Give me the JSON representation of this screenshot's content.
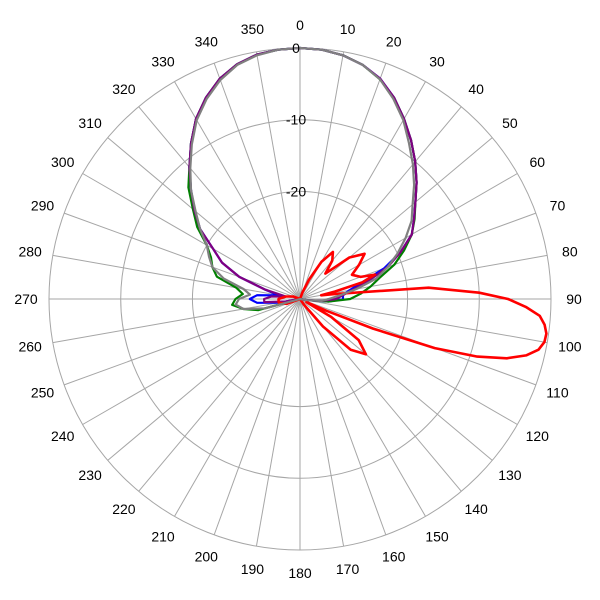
{
  "chart_data": {
    "type": "polar-line",
    "angle_direction": "clockwise",
    "zero_direction": "top",
    "angle_ticks": [
      0,
      10,
      20,
      30,
      40,
      50,
      60,
      70,
      80,
      90,
      100,
      110,
      120,
      130,
      140,
      150,
      160,
      170,
      180,
      190,
      200,
      210,
      220,
      230,
      240,
      250,
      260,
      270,
      280,
      290,
      300,
      310,
      320,
      330,
      340,
      350
    ],
    "radial_ticks": [
      0,
      -10,
      -20
    ],
    "r_range": [
      -35,
      0
    ],
    "grid": true,
    "series": [
      {
        "color": "#0000ff",
        "points": [
          [
            0,
            0
          ],
          [
            5,
            -0.1
          ],
          [
            10,
            -0.5
          ],
          [
            15,
            -1.2
          ],
          [
            20,
            -2.3
          ],
          [
            25,
            -4
          ],
          [
            30,
            -6
          ],
          [
            35,
            -8
          ],
          [
            40,
            -10
          ],
          [
            45,
            -12
          ],
          [
            50,
            -14
          ],
          [
            55,
            -15.6
          ],
          [
            60,
            -17
          ],
          [
            65,
            -19.5
          ],
          [
            70,
            -22.5
          ],
          [
            75,
            -26
          ],
          [
            80,
            -28
          ],
          [
            85,
            -29
          ],
          [
            90,
            -29
          ],
          [
            95,
            -31
          ],
          [
            100,
            -34
          ],
          [
            110,
            -35
          ],
          [
            180,
            -35
          ],
          [
            250,
            -35
          ],
          [
            260,
            -32
          ],
          [
            265,
            -29
          ],
          [
            270,
            -28
          ],
          [
            275,
            -29
          ],
          [
            280,
            -32
          ],
          [
            285,
            -30
          ],
          [
            290,
            -26
          ],
          [
            295,
            -23
          ],
          [
            300,
            -21
          ],
          [
            305,
            -18
          ],
          [
            310,
            -15.8
          ],
          [
            315,
            -13.5
          ],
          [
            320,
            -11
          ],
          [
            325,
            -8.5
          ],
          [
            330,
            -6
          ],
          [
            335,
            -4
          ],
          [
            340,
            -2.3
          ],
          [
            345,
            -1.1
          ],
          [
            350,
            -0.4
          ],
          [
            355,
            -0.1
          ],
          [
            360,
            0
          ]
        ]
      },
      {
        "color": "#008000",
        "points": [
          [
            0,
            0
          ],
          [
            5,
            -0.1
          ],
          [
            10,
            -0.5
          ],
          [
            15,
            -1.2
          ],
          [
            20,
            -2.4
          ],
          [
            25,
            -4
          ],
          [
            30,
            -6
          ],
          [
            35,
            -8
          ],
          [
            40,
            -10
          ],
          [
            45,
            -12
          ],
          [
            50,
            -14
          ],
          [
            55,
            -15.5
          ],
          [
            60,
            -17
          ],
          [
            65,
            -19
          ],
          [
            70,
            -21
          ],
          [
            75,
            -23.5
          ],
          [
            80,
            -25
          ],
          [
            85,
            -26.5
          ],
          [
            90,
            -28
          ],
          [
            95,
            -31
          ],
          [
            100,
            -34
          ],
          [
            110,
            -35
          ],
          [
            180,
            -35
          ],
          [
            250,
            -35
          ],
          [
            255,
            -29
          ],
          [
            260,
            -27
          ],
          [
            265,
            -25.5
          ],
          [
            270,
            -26
          ],
          [
            275,
            -27
          ],
          [
            280,
            -26
          ],
          [
            285,
            -23
          ],
          [
            290,
            -22
          ],
          [
            295,
            -21.3
          ],
          [
            300,
            -20
          ],
          [
            305,
            -17.5
          ],
          [
            310,
            -15.5
          ],
          [
            315,
            -13
          ],
          [
            320,
            -11
          ],
          [
            325,
            -8.5
          ],
          [
            330,
            -6
          ],
          [
            335,
            -4
          ],
          [
            340,
            -2.3
          ],
          [
            345,
            -1.1
          ],
          [
            350,
            -0.4
          ],
          [
            355,
            -0.1
          ],
          [
            360,
            0
          ]
        ]
      },
      {
        "color": "#800080",
        "points": [
          [
            0,
            0
          ],
          [
            5,
            -0.1
          ],
          [
            10,
            -0.5
          ],
          [
            15,
            -1.2
          ],
          [
            20,
            -2.3
          ],
          [
            25,
            -4
          ],
          [
            30,
            -6
          ],
          [
            35,
            -8
          ],
          [
            40,
            -10
          ],
          [
            45,
            -12
          ],
          [
            50,
            -14
          ],
          [
            55,
            -15.6
          ],
          [
            60,
            -17
          ],
          [
            65,
            -19.5
          ],
          [
            70,
            -22
          ],
          [
            75,
            -25
          ],
          [
            80,
            -27.5
          ],
          [
            85,
            -29
          ],
          [
            90,
            -30
          ],
          [
            95,
            -32
          ],
          [
            100,
            -34
          ],
          [
            110,
            -35
          ],
          [
            180,
            -35
          ],
          [
            250,
            -35
          ],
          [
            260,
            -33
          ],
          [
            265,
            -30
          ],
          [
            270,
            -30
          ],
          [
            275,
            -31
          ],
          [
            280,
            -33
          ],
          [
            285,
            -30
          ],
          [
            290,
            -26
          ],
          [
            295,
            -23
          ],
          [
            300,
            -21
          ],
          [
            305,
            -18
          ],
          [
            310,
            -15.8
          ],
          [
            315,
            -13.5
          ],
          [
            320,
            -11
          ],
          [
            325,
            -8.5
          ],
          [
            330,
            -6
          ],
          [
            335,
            -4
          ],
          [
            340,
            -2.3
          ],
          [
            345,
            -1.1
          ],
          [
            350,
            -0.4
          ],
          [
            355,
            -0.1
          ],
          [
            360,
            0
          ]
        ]
      },
      {
        "color": "#ff0000",
        "points": [
          [
            0,
            -35
          ],
          [
            10,
            -35
          ],
          [
            20,
            -34
          ],
          [
            25,
            -32
          ],
          [
            30,
            -29
          ],
          [
            35,
            -27
          ],
          [
            40,
            -28
          ],
          [
            45,
            -30
          ],
          [
            50,
            -26
          ],
          [
            55,
            -24
          ],
          [
            60,
            -25.5
          ],
          [
            65,
            -27
          ],
          [
            70,
            -26
          ],
          [
            72,
            -24
          ],
          [
            75,
            -26
          ],
          [
            78,
            -30
          ],
          [
            80,
            -32
          ],
          [
            82,
            -30
          ],
          [
            85,
            -17
          ],
          [
            88,
            -10
          ],
          [
            90,
            -6
          ],
          [
            92,
            -3.5
          ],
          [
            94,
            -1.5
          ],
          [
            96,
            -0.7
          ],
          [
            98,
            -0.3
          ],
          [
            100,
            -0.4
          ],
          [
            102,
            -1
          ],
          [
            104,
            -2.5
          ],
          [
            106,
            -5
          ],
          [
            108,
            -9
          ],
          [
            110,
            -15
          ],
          [
            112,
            -24
          ],
          [
            114,
            -31
          ],
          [
            116,
            -34
          ],
          [
            120,
            -30
          ],
          [
            125,
            -25
          ],
          [
            130,
            -23
          ],
          [
            135,
            -25
          ],
          [
            140,
            -30
          ],
          [
            145,
            -34
          ],
          [
            150,
            -35
          ],
          [
            210,
            -35
          ],
          [
            240,
            -35
          ],
          [
            250,
            -33
          ],
          [
            260,
            -32
          ],
          [
            270,
            -32
          ],
          [
            280,
            -33
          ],
          [
            290,
            -34
          ],
          [
            300,
            -35
          ],
          [
            360,
            -35
          ]
        ]
      },
      {
        "color": "#808080",
        "points": [
          [
            0,
            0
          ],
          [
            5,
            -0.1
          ],
          [
            10,
            -0.5
          ],
          [
            15,
            -1.2
          ],
          [
            20,
            -2.4
          ],
          [
            25,
            -4.2
          ],
          [
            30,
            -6.2
          ],
          [
            35,
            -8.5
          ],
          [
            40,
            -10.5
          ],
          [
            45,
            -12.5
          ],
          [
            50,
            -14.5
          ],
          [
            55,
            -16
          ],
          [
            60,
            -18
          ],
          [
            65,
            -20
          ],
          [
            70,
            -22
          ],
          [
            75,
            -24
          ],
          [
            80,
            -27
          ],
          [
            85,
            -29.5
          ],
          [
            90,
            -31
          ],
          [
            95,
            -32
          ],
          [
            100,
            -34
          ],
          [
            110,
            -35
          ],
          [
            180,
            -35
          ],
          [
            250,
            -35
          ],
          [
            255,
            -30
          ],
          [
            260,
            -27
          ],
          [
            265,
            -26
          ],
          [
            270,
            -26.5
          ],
          [
            275,
            -28
          ],
          [
            280,
            -27
          ],
          [
            285,
            -24
          ],
          [
            290,
            -22
          ],
          [
            295,
            -21
          ],
          [
            300,
            -20
          ],
          [
            305,
            -18
          ],
          [
            310,
            -16
          ],
          [
            315,
            -13.5
          ],
          [
            320,
            -11.2
          ],
          [
            325,
            -8.7
          ],
          [
            330,
            -6.2
          ],
          [
            335,
            -4.2
          ],
          [
            340,
            -2.5
          ],
          [
            345,
            -1.2
          ],
          [
            350,
            -0.5
          ],
          [
            355,
            -0.1
          ],
          [
            360,
            0
          ]
        ]
      }
    ]
  }
}
